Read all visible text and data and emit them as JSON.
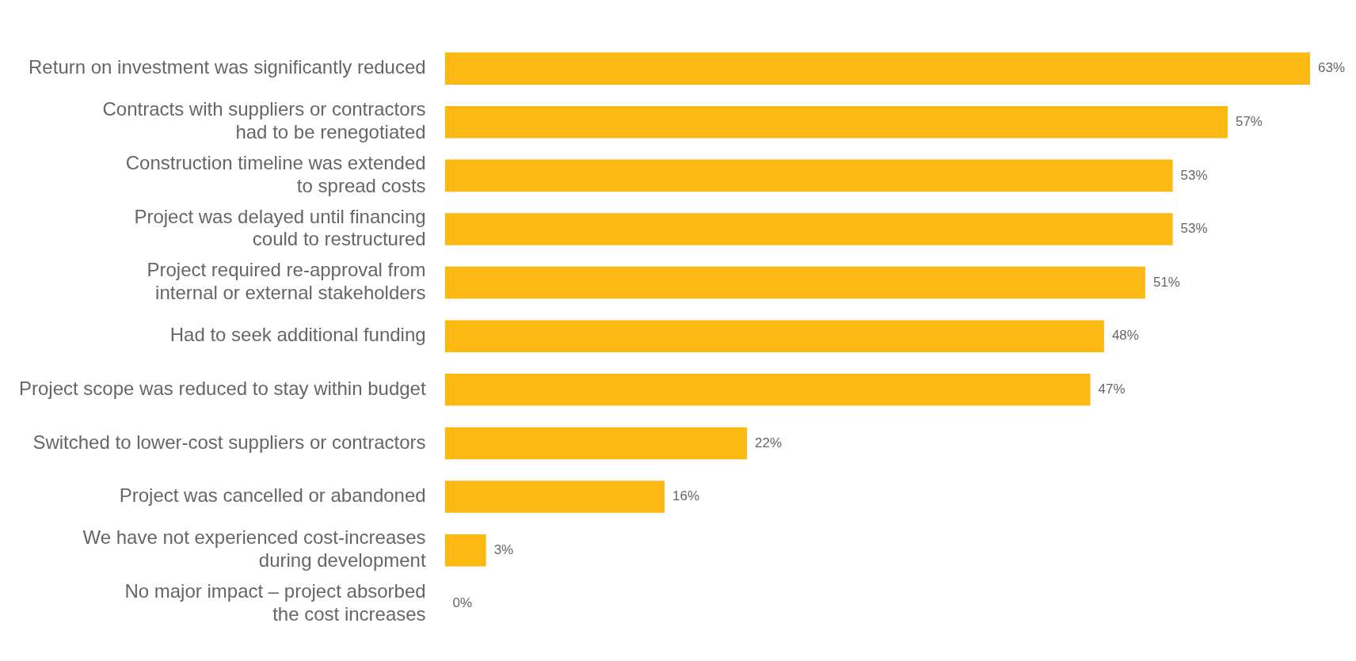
{
  "chart_data": {
    "type": "bar",
    "orientation": "horizontal",
    "legend": false,
    "categories": [
      "Return on investment was significantly reduced",
      "Contracts with suppliers or contractors\nhad to be renegotiated",
      "Construction timeline was extended\nto spread costs",
      "Project was delayed until financing\ncould to restructured",
      "Project required re-approval from\ninternal or external stakeholders",
      "Had to seek additional funding",
      "Project scope was reduced to stay within budget",
      "Switched to lower-cost suppliers or contractors",
      "Project was cancelled or abandoned",
      "We have not experienced cost-increases\nduring development",
      "No major impact – project absorbed\nthe cost increases"
    ],
    "series": [
      {
        "color": "#fdb913",
        "values": [
          63,
          57,
          53,
          53,
          51,
          48,
          47,
          22,
          16,
          3,
          0
        ],
        "value_labels": [
          "63%",
          "57%",
          "53%",
          "53%",
          "51%",
          "48%",
          "47%",
          "22%",
          "16%",
          "3%",
          "0%"
        ]
      }
    ]
  }
}
